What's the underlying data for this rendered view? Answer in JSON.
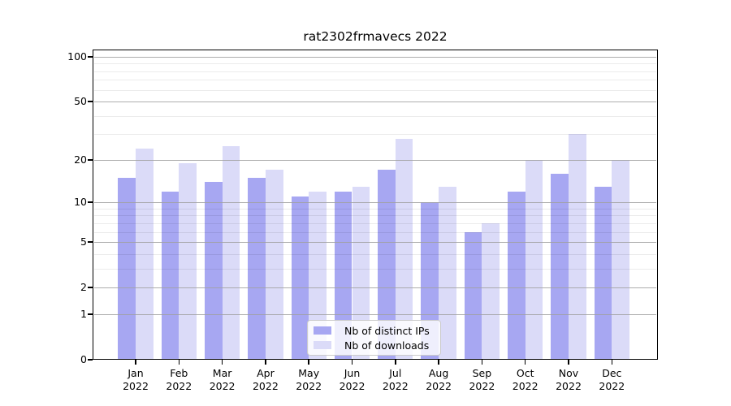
{
  "title": "rat2302frmavecs 2022",
  "chart_data": {
    "type": "bar",
    "title": "rat2302frmavecs 2022",
    "xlabel": "",
    "ylabel": "",
    "categories": [
      "Jan 2022",
      "Feb 2022",
      "Mar 2022",
      "Apr 2022",
      "May 2022",
      "Jun 2022",
      "Jul 2022",
      "Aug 2022",
      "Sep 2022",
      "Oct 2022",
      "Nov 2022",
      "Dec 2022"
    ],
    "x_tick_line1": [
      "Jan",
      "Feb",
      "Mar",
      "Apr",
      "May",
      "Jun",
      "Jul",
      "Aug",
      "Sep",
      "Oct",
      "Nov",
      "Dec"
    ],
    "x_tick_line2": "2022",
    "series": [
      {
        "name": "Nb of distinct IPs",
        "key": "distinct-ips",
        "color": "#a7a7f2",
        "values": [
          15,
          12,
          14,
          15,
          11,
          12,
          17,
          10,
          6,
          12,
          16,
          13
        ]
      },
      {
        "name": "Nb of downloads",
        "key": "downloads",
        "color": "#dbdbf8",
        "values": [
          24,
          19,
          25,
          17,
          12,
          13,
          28,
          13,
          7,
          20,
          30,
          20
        ]
      }
    ],
    "yscale": "log1p",
    "ylim": [
      0,
      112
    ],
    "y_tick_values": [
      100,
      50,
      20,
      10,
      5,
      2,
      1,
      0
    ],
    "y_minor_gridline_values": [
      3,
      4,
      6,
      7,
      8,
      9,
      30,
      40,
      60,
      70,
      80,
      90
    ],
    "grid": true,
    "legend_position": "lower center"
  },
  "colors": {
    "bar_distinct_ips": "#a7a7f2",
    "bar_downloads": "#dbdbf8",
    "grid_major": "#a0a0a0",
    "grid_minor": "#e9e9e9",
    "axis": "#000000",
    "legend_border": "#cbcbcb",
    "background": "#ffffff"
  }
}
